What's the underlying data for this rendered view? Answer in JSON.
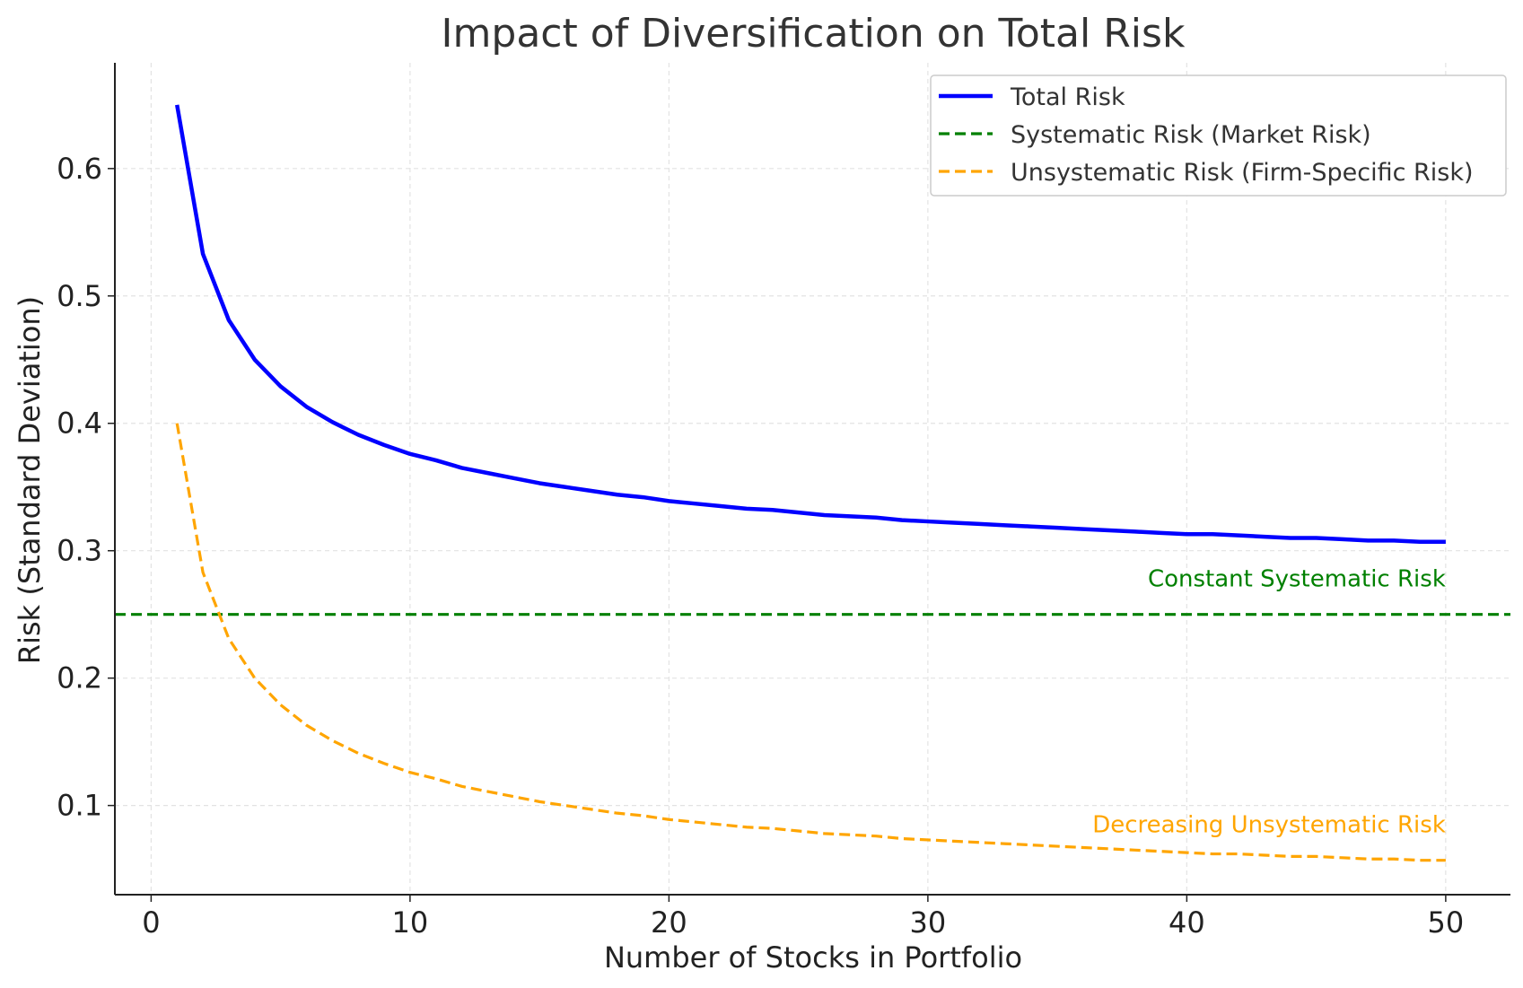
{
  "chart_data": {
    "type": "line",
    "title": "Impact of Diversification on Total Risk",
    "xlabel": "Number of Stocks in Portfolio",
    "ylabel": "Risk (Standard Deviation)",
    "xlim": [
      -1.4,
      52.5
    ],
    "ylim": [
      0.03,
      0.683
    ],
    "x_ticks": [
      0,
      10,
      20,
      30,
      40,
      50
    ],
    "x_tick_labels": [
      "0",
      "10",
      "20",
      "30",
      "40",
      "50"
    ],
    "y_ticks": [
      0.1,
      0.2,
      0.3,
      0.4,
      0.5,
      0.6
    ],
    "y_tick_labels": [
      "0.1",
      "0.2",
      "0.3",
      "0.4",
      "0.5",
      "0.6"
    ],
    "grid": true,
    "legend_position": "top-right",
    "x": [
      1,
      2,
      3,
      4,
      5,
      6,
      7,
      8,
      9,
      10,
      11,
      12,
      13,
      14,
      15,
      16,
      17,
      18,
      19,
      20,
      21,
      22,
      23,
      24,
      25,
      26,
      27,
      28,
      29,
      30,
      31,
      32,
      33,
      34,
      35,
      36,
      37,
      38,
      39,
      40,
      41,
      42,
      43,
      44,
      45,
      46,
      47,
      48,
      49,
      50
    ],
    "series": [
      {
        "name": "Total Risk",
        "color": "#0000ff",
        "style": "solid",
        "values": [
          0.65,
          0.533,
          0.481,
          0.45,
          0.429,
          0.413,
          0.401,
          0.391,
          0.383,
          0.376,
          0.371,
          0.365,
          0.361,
          0.357,
          0.353,
          0.35,
          0.347,
          0.344,
          0.342,
          0.339,
          0.337,
          0.335,
          0.333,
          0.332,
          0.33,
          0.328,
          0.327,
          0.326,
          0.324,
          0.323,
          0.322,
          0.321,
          0.32,
          0.319,
          0.318,
          0.317,
          0.316,
          0.315,
          0.314,
          0.313,
          0.313,
          0.312,
          0.311,
          0.31,
          0.31,
          0.309,
          0.308,
          0.308,
          0.307,
          0.307
        ]
      },
      {
        "name": "Systematic Risk (Market Risk)",
        "color": "#008000",
        "style": "dashed",
        "horizontal": true,
        "value": 0.25
      },
      {
        "name": "Unsystematic Risk (Firm-Specific Risk)",
        "color": "#ffa500",
        "style": "dashed",
        "values": [
          0.4,
          0.283,
          0.231,
          0.2,
          0.179,
          0.163,
          0.151,
          0.141,
          0.133,
          0.126,
          0.121,
          0.115,
          0.111,
          0.107,
          0.103,
          0.1,
          0.097,
          0.094,
          0.092,
          0.089,
          0.087,
          0.085,
          0.083,
          0.082,
          0.08,
          0.078,
          0.077,
          0.076,
          0.074,
          0.073,
          0.072,
          0.071,
          0.07,
          0.069,
          0.068,
          0.067,
          0.066,
          0.065,
          0.064,
          0.063,
          0.062,
          0.062,
          0.061,
          0.06,
          0.06,
          0.059,
          0.058,
          0.058,
          0.057,
          0.057
        ]
      }
    ],
    "annotations": [
      {
        "text": "Constant Systematic Risk",
        "x": 50,
        "y": 0.272,
        "color": "#008000"
      },
      {
        "text": "Decreasing Unsystematic Risk",
        "x": 50,
        "y": 0.079,
        "color": "#ffa500"
      }
    ]
  }
}
